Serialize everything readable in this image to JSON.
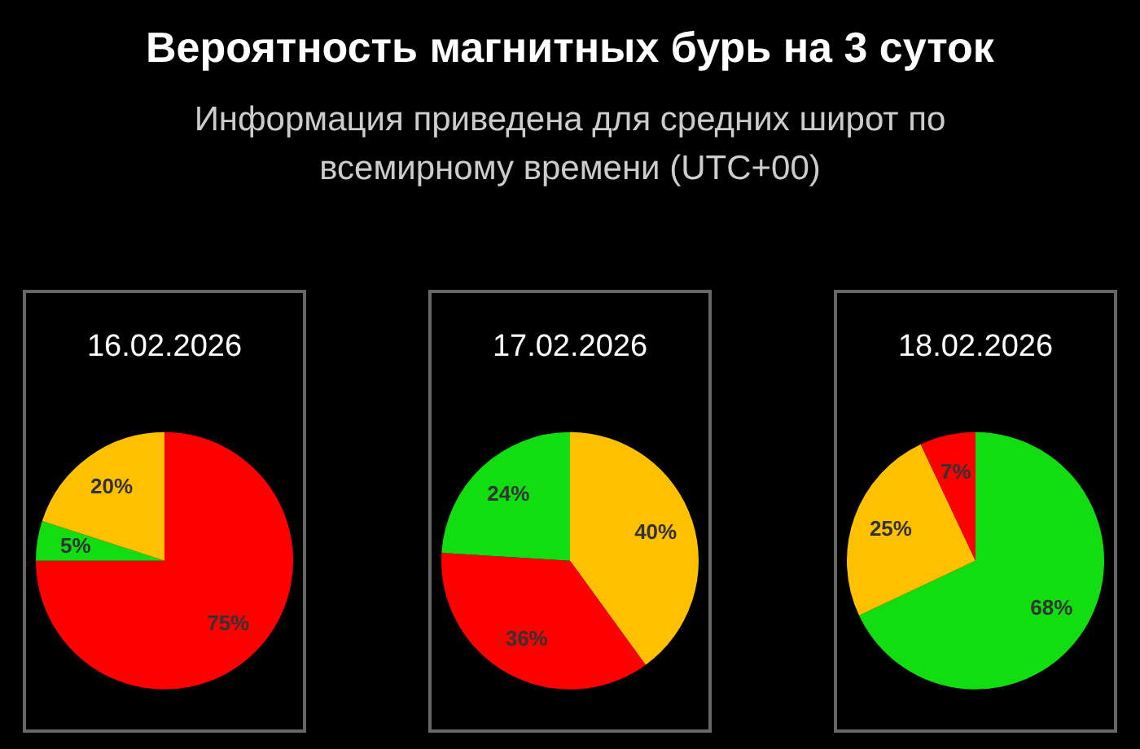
{
  "chart_data": [
    {
      "type": "other",
      "title": "Вероятность магнитных бурь на 3 суток",
      "subtitle": "Информация приведена для средних широт по всемирному времени (UTC+00)"
    },
    {
      "type": "pie",
      "title": "16.02.2026",
      "categories": [
        null,
        null,
        null
      ],
      "values": [
        75,
        5,
        20
      ],
      "colors": [
        "#ff0000",
        "#11dd11",
        "#ffc000"
      ],
      "value_labels": [
        "75%",
        "5%",
        "20%"
      ]
    },
    {
      "type": "pie",
      "title": "17.02.2026",
      "categories": [
        null,
        null,
        null
      ],
      "values": [
        40,
        36,
        24
      ],
      "colors": [
        "#ffc000",
        "#ff0000",
        "#11dd11"
      ],
      "value_labels": [
        "40%",
        "36%",
        "24%"
      ]
    },
    {
      "type": "pie",
      "title": "18.02.2026",
      "categories": [
        null,
        null,
        null
      ],
      "values": [
        68,
        25,
        7
      ],
      "colors": [
        "#11dd11",
        "#ffc000",
        "#ff0000"
      ],
      "value_labels": [
        "68%",
        "25%",
        "7%"
      ]
    }
  ]
}
